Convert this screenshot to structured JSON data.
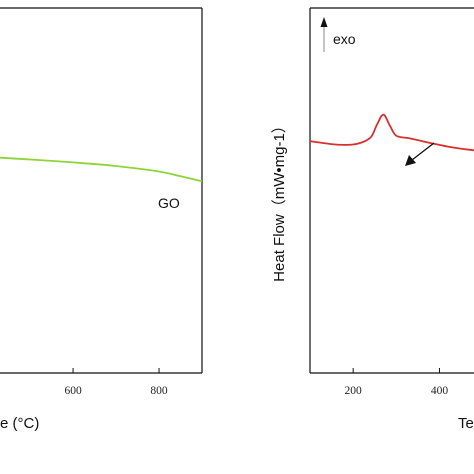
{
  "chart_data": [
    {
      "type": "line",
      "xlabel": "e (°C)",
      "x_ticks": [
        600,
        800
      ],
      "xlim": [
        430,
        900
      ],
      "ylim": [
        0,
        1
      ],
      "series": [
        {
          "name": "GO",
          "color": "#8fd33a",
          "x": [
            430,
            500,
            600,
            700,
            800,
            850,
            900
          ],
          "y": [
            0.59,
            0.585,
            0.577,
            0.567,
            0.552,
            0.539,
            0.525
          ]
        }
      ]
    },
    {
      "type": "line",
      "ylabel": "Heat Flow（mW•mg-1）",
      "xlabel": "Te",
      "annotation": "exo",
      "x_ticks": [
        200,
        400
      ],
      "xlim": [
        100,
        480
      ],
      "ylim": [
        0,
        1
      ],
      "series": [
        {
          "name": "",
          "color": "#d8302c",
          "x": [
            100,
            150,
            180,
            210,
            240,
            255,
            270,
            285,
            300,
            330,
            380,
            430,
            480
          ],
          "y": [
            0.635,
            0.627,
            0.625,
            0.628,
            0.645,
            0.68,
            0.708,
            0.678,
            0.65,
            0.643,
            0.63,
            0.618,
            0.61
          ]
        }
      ],
      "peak_arrow_at_x": 270
    }
  ]
}
